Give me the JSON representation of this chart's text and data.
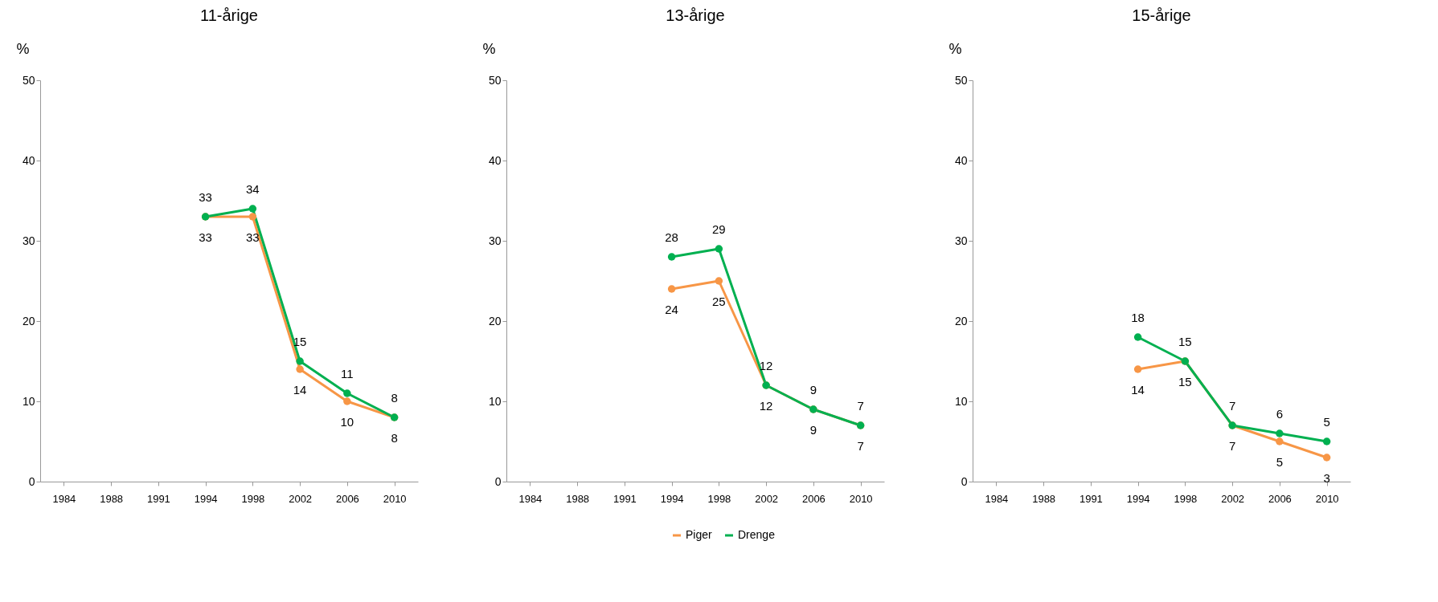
{
  "chart_data": [
    {
      "type": "line",
      "title": "11-årige",
      "ylabel": "%",
      "categories": [
        "1984",
        "1988",
        "1991",
        "1994",
        "1998",
        "2002",
        "2006",
        "2010"
      ],
      "ylim": [
        0,
        50
      ],
      "yticks": [
        0,
        10,
        20,
        30,
        40,
        50
      ],
      "grid": false,
      "marker": "circle",
      "data_labels": true,
      "series": [
        {
          "color": "#f79646",
          "values": [
            null,
            null,
            null,
            33,
            33,
            14,
            10,
            8
          ]
        },
        {
          "color": "#00b050",
          "values": [
            null,
            null,
            null,
            33,
            34,
            15,
            11,
            8
          ]
        }
      ]
    },
    {
      "type": "line",
      "title": "13-årige",
      "ylabel": "%",
      "categories": [
        "1984",
        "1988",
        "1991",
        "1994",
        "1998",
        "2002",
        "2006",
        "2010"
      ],
      "ylim": [
        0,
        50
      ],
      "yticks": [
        0,
        10,
        20,
        30,
        40,
        50
      ],
      "grid": false,
      "marker": "circle",
      "data_labels": true,
      "legend": "bottom",
      "series": [
        {
          "name": "Piger",
          "color": "#f79646",
          "values": [
            null,
            null,
            null,
            24,
            25,
            12,
            9,
            7
          ]
        },
        {
          "name": "Drenge",
          "color": "#00b050",
          "values": [
            null,
            null,
            null,
            28,
            29,
            12,
            9,
            7
          ]
        }
      ]
    },
    {
      "type": "line",
      "title": "15-årige",
      "ylabel": "%",
      "categories": [
        "1984",
        "1988",
        "1991",
        "1994",
        "1998",
        "2002",
        "2006",
        "2010"
      ],
      "ylim": [
        0,
        50
      ],
      "yticks": [
        0,
        10,
        20,
        30,
        40,
        50
      ],
      "grid": false,
      "marker": "circle",
      "data_labels": true,
      "series": [
        {
          "color": "#f79646",
          "values": [
            null,
            null,
            null,
            14,
            15,
            7,
            5,
            3
          ]
        },
        {
          "color": "#00b050",
          "values": [
            null,
            null,
            null,
            18,
            15,
            7,
            6,
            5
          ]
        }
      ]
    }
  ]
}
